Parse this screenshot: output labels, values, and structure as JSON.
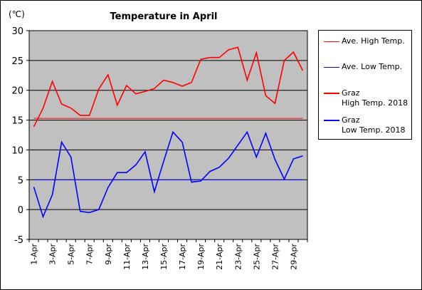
{
  "chart_data": {
    "type": "line",
    "title": "Temperature in April",
    "ylabel": "(℃)",
    "ylim": [
      -5,
      30
    ],
    "yticks": [
      -5,
      0,
      5,
      10,
      15,
      20,
      25,
      30
    ],
    "categories": [
      "1-Apr",
      "2-Apr",
      "3-Apr",
      "4-Apr",
      "5-Apr",
      "6-Apr",
      "7-Apr",
      "8-Apr",
      "9-Apr",
      "10-Apr",
      "11-Apr",
      "12-Apr",
      "13-Apr",
      "14-Apr",
      "15-Apr",
      "16-Apr",
      "17-Apr",
      "18-Apr",
      "19-Apr",
      "20-Apr",
      "21-Apr",
      "22-Apr",
      "23-Apr",
      "24-Apr",
      "25-Apr",
      "26-Apr",
      "27-Apr",
      "28-Apr",
      "29-Apr",
      "30-Apr"
    ],
    "xtick_labels": [
      "1-Apr",
      "3-Apr",
      "5-Apr",
      "7-Apr",
      "9-Apr",
      "11-Apr",
      "13-Apr",
      "15-Apr",
      "17-Apr",
      "19-Apr",
      "21-Apr",
      "23-Apr",
      "25-Apr",
      "27-Apr",
      "29-Apr"
    ],
    "grid": true,
    "plot_background": "#c0c0c0",
    "legend_position": "right",
    "series": [
      {
        "name": "Ave. High Temp.",
        "color": "#ff0000",
        "stroke": "thin",
        "values": [
          15.3,
          15.3,
          15.3,
          15.3,
          15.3,
          15.3,
          15.3,
          15.3,
          15.3,
          15.3,
          15.3,
          15.3,
          15.3,
          15.3,
          15.3,
          15.3,
          15.3,
          15.3,
          15.3,
          15.3,
          15.3,
          15.3,
          15.3,
          15.3,
          15.3,
          15.3,
          15.3,
          15.3,
          15.3,
          15.3
        ]
      },
      {
        "name": "Ave. Low Temp.",
        "color": "#0000ff",
        "stroke": "thin",
        "values": [
          5.0,
          5.0,
          5.0,
          5.0,
          5.0,
          5.0,
          5.0,
          5.0,
          5.0,
          5.0,
          5.0,
          5.0,
          5.0,
          5.0,
          5.0,
          5.0,
          5.0,
          5.0,
          5.0,
          5.0,
          5.0,
          5.0,
          5.0,
          5.0,
          5.0,
          5.0,
          5.0,
          5.0,
          5.0,
          5.0
        ]
      },
      {
        "name": "Graz\nHigh Temp. 2018",
        "color": "#ff0000",
        "stroke": "thick",
        "values": [
          13.9,
          17.0,
          21.5,
          17.7,
          17.0,
          15.8,
          15.8,
          20.2,
          22.6,
          17.5,
          20.8,
          19.4,
          19.8,
          20.3,
          21.7,
          21.3,
          20.7,
          21.3,
          25.2,
          25.5,
          25.5,
          26.8,
          27.2,
          21.7,
          26.3,
          19.1,
          17.8,
          25.0,
          26.4,
          23.3
        ]
      },
      {
        "name": "Graz\nLow Temp. 2018",
        "color": "#0000ff",
        "stroke": "thick",
        "values": [
          3.8,
          -1.2,
          2.5,
          11.3,
          8.8,
          -0.3,
          -0.5,
          0.0,
          3.7,
          6.2,
          6.2,
          7.5,
          9.7,
          3.0,
          8.1,
          13.0,
          11.3,
          4.6,
          4.8,
          6.4,
          7.1,
          8.6,
          10.8,
          13.0,
          8.8,
          12.8,
          8.4,
          5.1,
          8.5,
          9.0
        ]
      }
    ]
  }
}
